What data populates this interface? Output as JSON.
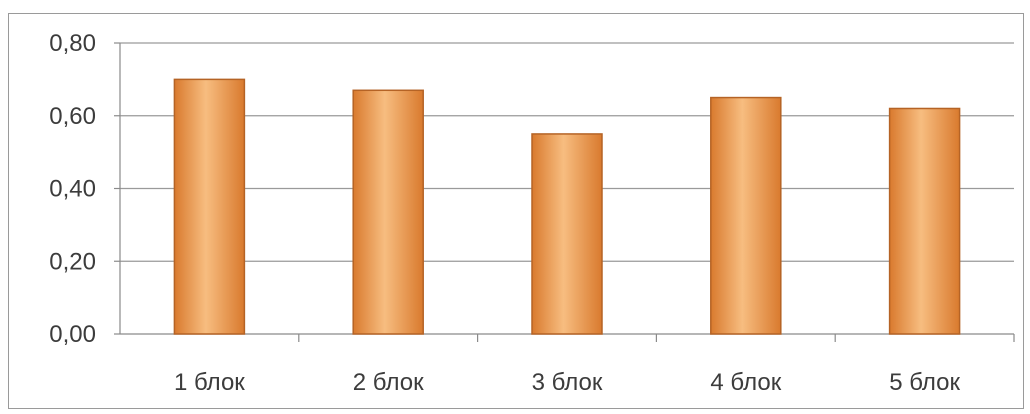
{
  "chart_data": {
    "type": "bar",
    "categories": [
      "1 блок",
      "2 блок",
      "3 блок",
      "4 блок",
      "5 блок"
    ],
    "values": [
      0.7,
      0.67,
      0.55,
      0.65,
      0.62
    ],
    "title": "",
    "xlabel": "",
    "ylabel": "",
    "ylim": [
      0,
      0.8
    ],
    "yticks": [
      "0,00",
      "0,20",
      "0,40",
      "0,60",
      "0,80"
    ],
    "grid": true,
    "legend": "none",
    "bar_color": "#f0a055",
    "bar_color_light": "#f7bd80",
    "bar_color_dark": "#d97a2e",
    "bar_border": "#b56325"
  }
}
